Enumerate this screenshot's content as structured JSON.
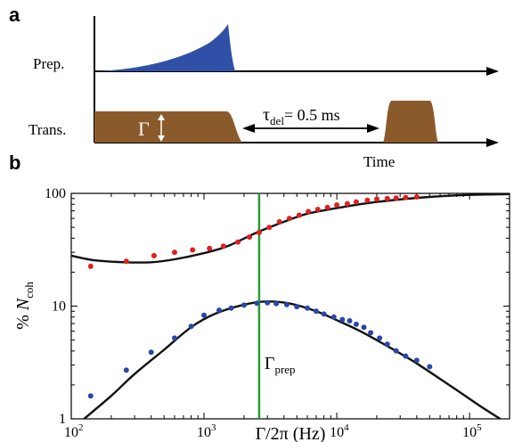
{
  "panel_a": {
    "label": "a",
    "rows": [
      {
        "label": "Prep."
      },
      {
        "label": "Trans."
      }
    ],
    "gamma_label": "Γ",
    "delay": {
      "tau": "τ",
      "sub": "del",
      "value": "= 0.5 ms"
    },
    "time_label": "Time",
    "colors": {
      "prep_pulse": "#3050a8",
      "trans_pulse": "#8b5a2b",
      "axis": "#000000"
    }
  },
  "panel_b": {
    "label": "b"
  },
  "chart_data": {
    "type": "scatter",
    "xscale": "log",
    "yscale": "log",
    "xlim": [
      100,
      200000
    ],
    "ylim": [
      1,
      100
    ],
    "xlabel": "Γ/2π (Hz)",
    "ylabel": {
      "prefix": "% ",
      "symbol": "N",
      "sub": "coh"
    },
    "x_tick_labels": [
      {
        "value": 100,
        "base": "10",
        "exp": "2"
      },
      {
        "value": 1000,
        "base": "10",
        "exp": "3"
      },
      {
        "value": 10000,
        "base": "10",
        "exp": "4"
      },
      {
        "value": 100000,
        "base": "10",
        "exp": "5"
      }
    ],
    "y_tick_labels": [
      {
        "value": 1,
        "label": "1"
      },
      {
        "value": 10,
        "label": "10"
      },
      {
        "value": 100,
        "label": "100"
      }
    ],
    "vline": {
      "x": 2600,
      "label": "Γ",
      "sub": "prep",
      "color": "#2a9a3a"
    },
    "series": [
      {
        "color": "#e02020",
        "points": [
          [
            140,
            22.5
          ],
          [
            260,
            25
          ],
          [
            420,
            28
          ],
          [
            600,
            30
          ],
          [
            820,
            31.5
          ],
          [
            1100,
            32.5
          ],
          [
            1400,
            34
          ],
          [
            1800,
            37
          ],
          [
            2200,
            41
          ],
          [
            2600,
            45
          ],
          [
            3100,
            50
          ],
          [
            3700,
            56
          ],
          [
            4400,
            60
          ],
          [
            5200,
            64
          ],
          [
            6100,
            69
          ],
          [
            7200,
            72
          ],
          [
            8500,
            75
          ],
          [
            10000,
            79
          ],
          [
            12000,
            81
          ],
          [
            14000,
            84
          ],
          [
            17000,
            87
          ],
          [
            20000,
            89
          ],
          [
            24000,
            90
          ],
          [
            28000,
            91
          ],
          [
            33000,
            92
          ],
          [
            40000,
            93
          ]
        ]
      },
      {
        "color": "#2848a8",
        "points": [
          [
            140,
            1.6
          ],
          [
            260,
            2.7
          ],
          [
            400,
            3.9
          ],
          [
            600,
            5.2
          ],
          [
            800,
            6.6
          ],
          [
            1000,
            8.3
          ],
          [
            1300,
            9.2
          ],
          [
            1600,
            9.6
          ],
          [
            2000,
            10.2
          ],
          [
            2500,
            10.6
          ],
          [
            3000,
            10.7
          ],
          [
            3500,
            10.5
          ],
          [
            4200,
            10.3
          ],
          [
            5000,
            9.9
          ],
          [
            6000,
            9.6
          ],
          [
            7000,
            9.0
          ],
          [
            8000,
            8.5
          ],
          [
            9500,
            8.0
          ],
          [
            11000,
            7.6
          ],
          [
            12500,
            7.4
          ],
          [
            14000,
            6.9
          ],
          [
            16000,
            6.5
          ],
          [
            18000,
            5.8
          ],
          [
            21000,
            5.2
          ],
          [
            24000,
            4.6
          ],
          [
            28000,
            4.0
          ],
          [
            33000,
            3.6
          ],
          [
            40000,
            3.3
          ],
          [
            50000,
            2.9
          ]
        ]
      }
    ],
    "curves": [
      {
        "color": "#111111",
        "points": [
          [
            100,
            28
          ],
          [
            150,
            25.5
          ],
          [
            250,
            24.5
          ],
          [
            400,
            24.5
          ],
          [
            600,
            26
          ],
          [
            1000,
            29.5
          ],
          [
            1500,
            34
          ],
          [
            2500,
            45
          ],
          [
            4000,
            56
          ],
          [
            6000,
            66
          ],
          [
            10000,
            74
          ],
          [
            20000,
            84
          ],
          [
            50000,
            93
          ],
          [
            100000,
            97
          ],
          [
            200000,
            98.5
          ]
        ]
      },
      {
        "color": "#111111",
        "points": [
          [
            125,
            1
          ],
          [
            200,
            1.6
          ],
          [
            300,
            2.5
          ],
          [
            500,
            4.1
          ],
          [
            800,
            6.5
          ],
          [
            1200,
            8.5
          ],
          [
            2000,
            10.3
          ],
          [
            3000,
            11.0
          ],
          [
            4500,
            10.5
          ],
          [
            7000,
            9.0
          ],
          [
            10000,
            7.5
          ],
          [
            15000,
            6.0
          ],
          [
            25000,
            4.3
          ],
          [
            40000,
            3.1
          ],
          [
            70000,
            2.0
          ],
          [
            120000,
            1.3
          ],
          [
            170000,
            1.0
          ]
        ]
      }
    ]
  }
}
